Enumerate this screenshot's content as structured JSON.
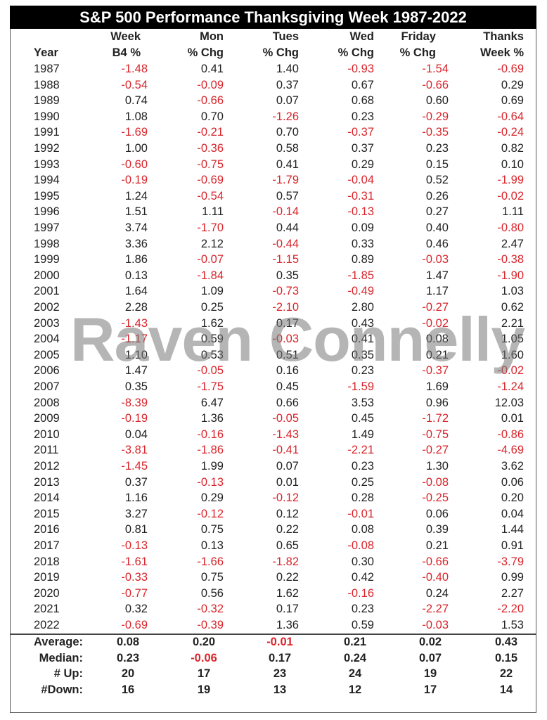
{
  "header": {
    "title": "S&P 500 Performance Thanksgiving Week 1987-2022"
  },
  "watermark": "Raven Connelly",
  "table": {
    "columns": [
      [
        "Year"
      ],
      [
        "Week",
        "B4 %"
      ],
      [
        "Mon",
        "% Chg"
      ],
      [
        "Tues",
        "% Chg"
      ],
      [
        "Wed",
        "% Chg"
      ],
      [
        "Friday",
        "% Chg"
      ],
      [
        "Thanks",
        "Week %"
      ]
    ],
    "rows": [
      [
        "1987",
        "-1.48",
        "0.41",
        "1.40",
        "-0.93",
        "-1.54",
        "-0.69"
      ],
      [
        "1988",
        "-0.54",
        "-0.09",
        "0.37",
        "0.67",
        "-0.66",
        "0.29"
      ],
      [
        "1989",
        "0.74",
        "-0.66",
        "0.07",
        "0.68",
        "0.60",
        "0.69"
      ],
      [
        "1990",
        "1.08",
        "0.70",
        "-1.26",
        "0.23",
        "-0.29",
        "-0.64"
      ],
      [
        "1991",
        "-1.69",
        "-0.21",
        "0.70",
        "-0.37",
        "-0.35",
        "-0.24"
      ],
      [
        "1992",
        "1.00",
        "-0.36",
        "0.58",
        "0.37",
        "0.23",
        "0.82"
      ],
      [
        "1993",
        "-0.60",
        "-0.75",
        "0.41",
        "0.29",
        "0.15",
        "0.10"
      ],
      [
        "1994",
        "-0.19",
        "-0.69",
        "-1.79",
        "-0.04",
        "0.52",
        "-1.99"
      ],
      [
        "1995",
        "1.24",
        "-0.54",
        "0.57",
        "-0.31",
        "0.26",
        "-0.02"
      ],
      [
        "1996",
        "1.51",
        "1.11",
        "-0.14",
        "-0.13",
        "0.27",
        "1.11"
      ],
      [
        "1997",
        "3.74",
        "-1.70",
        "0.44",
        "0.09",
        "0.40",
        "-0.80"
      ],
      [
        "1998",
        "3.36",
        "2.12",
        "-0.44",
        "0.33",
        "0.46",
        "2.47"
      ],
      [
        "1999",
        "1.86",
        "-0.07",
        "-1.15",
        "0.89",
        "-0.03",
        "-0.38"
      ],
      [
        "2000",
        "0.13",
        "-1.84",
        "0.35",
        "-1.85",
        "1.47",
        "-1.90"
      ],
      [
        "2001",
        "1.64",
        "1.09",
        "-0.73",
        "-0.49",
        "1.17",
        "1.03"
      ],
      [
        "2002",
        "2.28",
        "0.25",
        "-2.10",
        "2.80",
        "-0.27",
        "0.62"
      ],
      [
        "2003",
        "-1.43",
        "1.62",
        "0.17",
        "0.43",
        "-0.02",
        "2.21"
      ],
      [
        "2004",
        "-1.17",
        "0.59",
        "-0.03",
        "0.41",
        "0.08",
        "1.05"
      ],
      [
        "2005",
        "1.10",
        "0.53",
        "0.51",
        "0.35",
        "0.21",
        "1.60"
      ],
      [
        "2006",
        "1.47",
        "-0.05",
        "0.16",
        "0.23",
        "-0.37",
        "-0.02"
      ],
      [
        "2007",
        "0.35",
        "-1.75",
        "0.45",
        "-1.59",
        "1.69",
        "-1.24"
      ],
      [
        "2008",
        "-8.39",
        "6.47",
        "0.66",
        "3.53",
        "0.96",
        "12.03"
      ],
      [
        "2009",
        "-0.19",
        "1.36",
        "-0.05",
        "0.45",
        "-1.72",
        "0.01"
      ],
      [
        "2010",
        "0.04",
        "-0.16",
        "-1.43",
        "1.49",
        "-0.75",
        "-0.86"
      ],
      [
        "2011",
        "-3.81",
        "-1.86",
        "-0.41",
        "-2.21",
        "-0.27",
        "-4.69"
      ],
      [
        "2012",
        "-1.45",
        "1.99",
        "0.07",
        "0.23",
        "1.30",
        "3.62"
      ],
      [
        "2013",
        "0.37",
        "-0.13",
        "0.01",
        "0.25",
        "-0.08",
        "0.06"
      ],
      [
        "2014",
        "1.16",
        "0.29",
        "-0.12",
        "0.28",
        "-0.25",
        "0.20"
      ],
      [
        "2015",
        "3.27",
        "-0.12",
        "0.12",
        "-0.01",
        "0.06",
        "0.04"
      ],
      [
        "2016",
        "0.81",
        "0.75",
        "0.22",
        "0.08",
        "0.39",
        "1.44"
      ],
      [
        "2017",
        "-0.13",
        "0.13",
        "0.65",
        "-0.08",
        "0.21",
        "0.91"
      ],
      [
        "2018",
        "-1.61",
        "-1.66",
        "-1.82",
        "0.30",
        "-0.66",
        "-3.79"
      ],
      [
        "2019",
        "-0.33",
        "0.75",
        "0.22",
        "0.42",
        "-0.40",
        "0.99"
      ],
      [
        "2020",
        "-0.77",
        "0.56",
        "1.62",
        "-0.16",
        "0.24",
        "2.27"
      ],
      [
        "2021",
        "0.32",
        "-0.32",
        "0.17",
        "0.23",
        "-2.27",
        "-2.20"
      ],
      [
        "2022",
        "-0.69",
        "-0.39",
        "1.36",
        "0.59",
        "-0.03",
        "1.53"
      ]
    ],
    "summary": [
      [
        "Average:",
        "0.08",
        "0.20",
        "-0.01",
        "0.21",
        "0.02",
        "0.43"
      ],
      [
        "Median:",
        "0.23",
        "-0.06",
        "0.17",
        "0.24",
        "0.07",
        "0.15"
      ],
      [
        "# Up:",
        "20",
        "17",
        "23",
        "24",
        "19",
        "22"
      ],
      [
        "#Down:",
        "16",
        "19",
        "13",
        "12",
        "17",
        "14"
      ]
    ]
  }
}
